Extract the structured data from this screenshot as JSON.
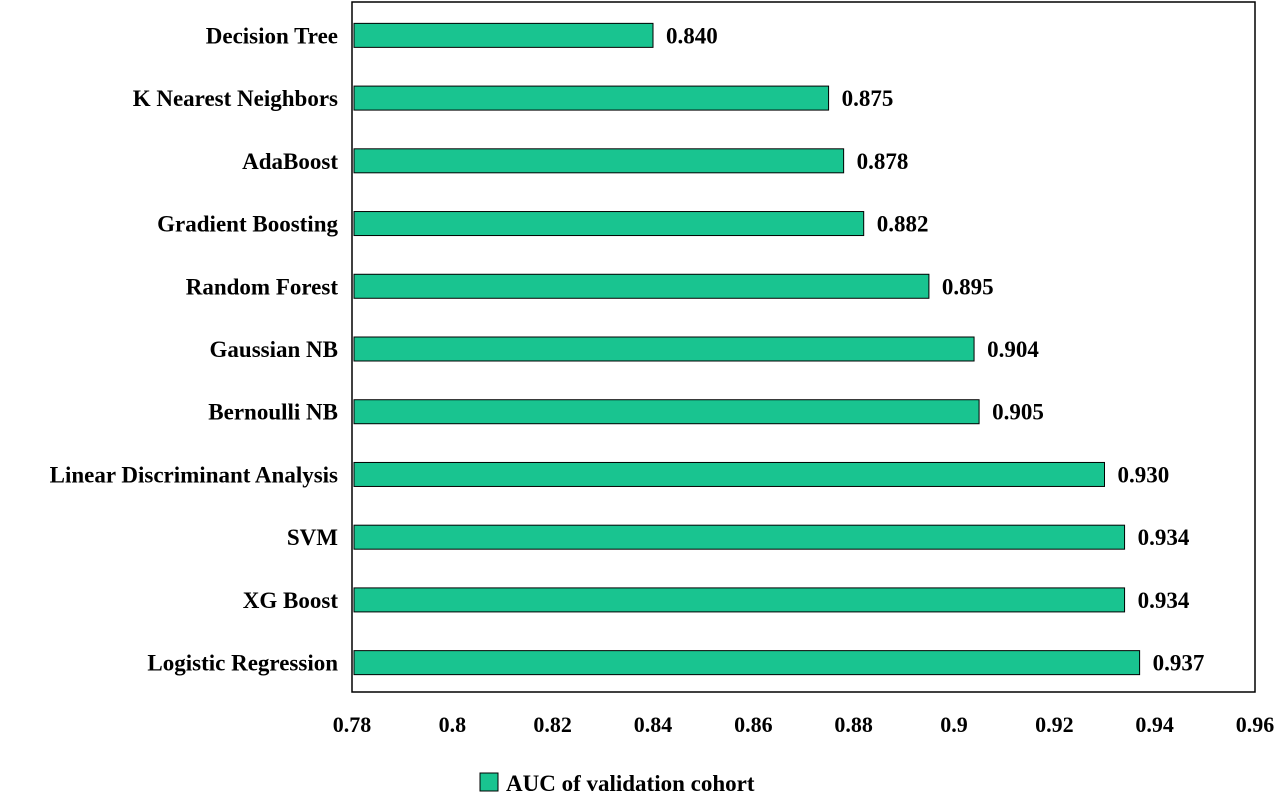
{
  "chart_data": {
    "type": "bar",
    "orientation": "horizontal",
    "categories": [
      "Decision Tree",
      "K Nearest Neighbors",
      "AdaBoost",
      "Gradient Boosting",
      "Random Forest",
      "Gaussian NB",
      "Bernoulli NB",
      "Linear Discriminant Analysis",
      "SVM",
      "XG Boost",
      "Logistic Regression"
    ],
    "series": [
      {
        "name": "AUC of validation cohort",
        "values": [
          0.84,
          0.875,
          0.878,
          0.882,
          0.895,
          0.904,
          0.905,
          0.93,
          0.934,
          0.934,
          0.937
        ],
        "value_labels": [
          "0.840",
          "0.875",
          "0.878",
          "0.882",
          "0.895",
          "0.904",
          "0.905",
          "0.930",
          "0.934",
          "0.934",
          "0.937"
        ],
        "color": "#19c490"
      }
    ],
    "xlim": [
      0.78,
      0.96
    ],
    "x_ticks": [
      "0.78",
      "0.8",
      "0.82",
      "0.84",
      "0.86",
      "0.88",
      "0.9",
      "0.92",
      "0.94",
      "0.96"
    ],
    "grid": false,
    "legend_position": "bottom-center",
    "title": "",
    "xlabel": "",
    "ylabel": ""
  }
}
